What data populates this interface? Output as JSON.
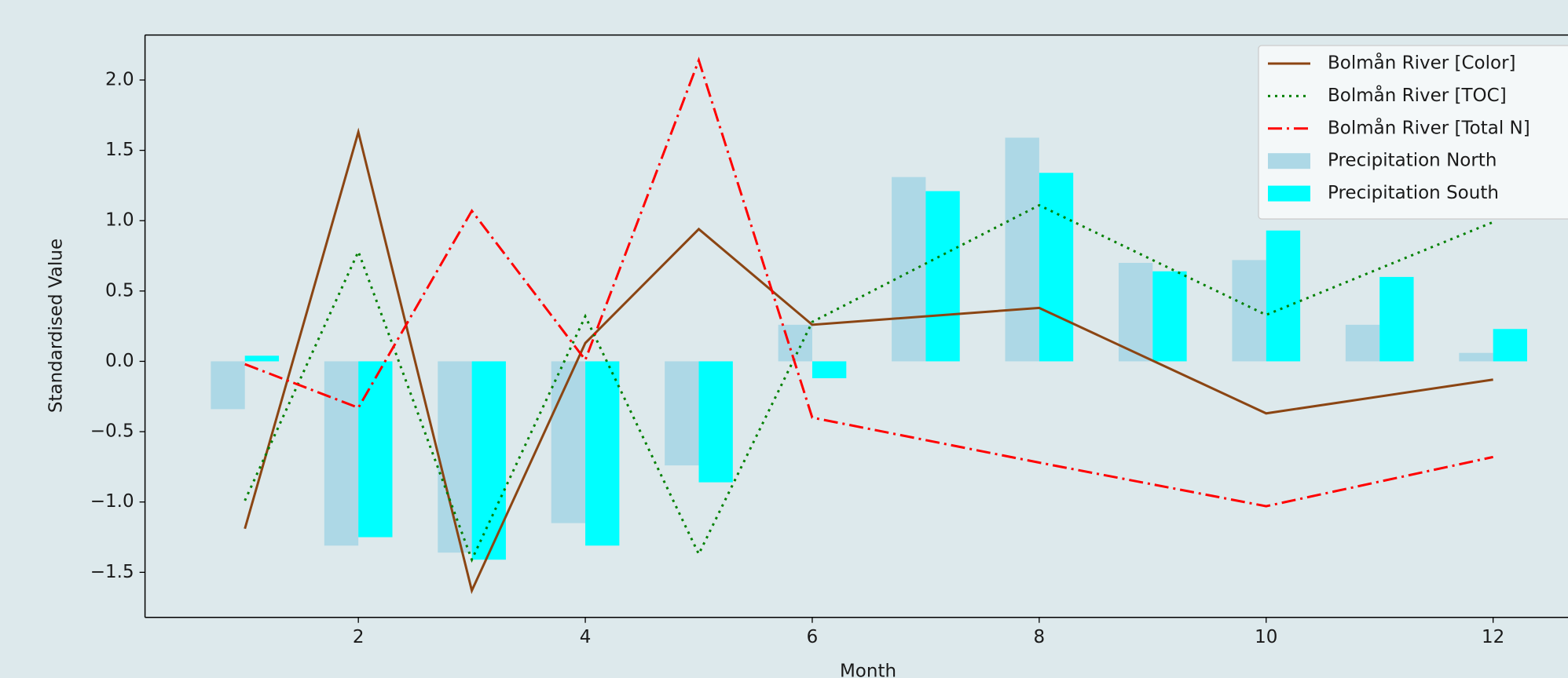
{
  "chart_data": {
    "type": "combo",
    "xlabel": "Month",
    "ylabel": "Standardised Value",
    "xlim": [
      0.12,
      12.66
    ],
    "ylim": [
      -1.82,
      2.32
    ],
    "xticks": [
      2,
      4,
      6,
      8,
      10,
      12
    ],
    "yticks": [
      {
        "value": 2.0,
        "label": "2.0"
      },
      {
        "value": 1.5,
        "label": "1.5"
      },
      {
        "value": 1.0,
        "label": "1.0"
      },
      {
        "value": 0.5,
        "label": "0.5"
      },
      {
        "value": 0.0,
        "label": "0.0"
      },
      {
        "value": -0.5,
        "label": "−0.5"
      },
      {
        "value": -1.0,
        "label": "−1.0"
      },
      {
        "value": -1.5,
        "label": "−1.5"
      }
    ],
    "legend": "upper right",
    "series": [
      {
        "name": "Bolmån River [Color]",
        "type": "line",
        "linestyle": "solid",
        "color": "#8b4513",
        "x": [
          1,
          2,
          3,
          4,
          5,
          6,
          8,
          10,
          12
        ],
        "values": [
          -1.19,
          1.63,
          -1.63,
          0.13,
          0.94,
          0.26,
          0.38,
          -0.37,
          -0.13
        ]
      },
      {
        "name": "Bolmån River [TOC]",
        "type": "line",
        "linestyle": "dotted",
        "color": "#008000",
        "x": [
          1,
          2,
          3,
          4,
          5,
          6,
          8,
          10,
          12
        ],
        "values": [
          -0.99,
          0.78,
          -1.41,
          0.32,
          -1.37,
          0.28,
          1.11,
          0.33,
          0.99
        ]
      },
      {
        "name": "Bolmån River [Total N]",
        "type": "line",
        "linestyle": "dashdot",
        "color": "#ff0000",
        "x": [
          1,
          2,
          3,
          4,
          5,
          6,
          8,
          10,
          12
        ],
        "values": [
          -0.02,
          -0.33,
          1.07,
          0.01,
          2.14,
          -0.4,
          -0.72,
          -1.03,
          -0.68
        ]
      },
      {
        "name": "Precipitation North",
        "type": "bar",
        "offset": -0.3,
        "width": 0.3,
        "color": "#add8e6",
        "x": [
          1,
          2,
          3,
          4,
          5,
          6,
          7,
          8,
          9,
          10,
          11,
          12
        ],
        "values": [
          -0.34,
          -1.31,
          -1.36,
          -1.15,
          -0.74,
          0.26,
          1.31,
          1.59,
          0.7,
          0.72,
          0.26,
          0.06
        ]
      },
      {
        "name": "Precipitation South",
        "type": "bar",
        "offset": 0,
        "width": 0.3,
        "color": "#00ffff",
        "x": [
          1,
          2,
          3,
          4,
          5,
          6,
          7,
          8,
          9,
          10,
          11,
          12
        ],
        "values": [
          0.04,
          -1.25,
          -1.41,
          -1.31,
          -0.86,
          -0.12,
          1.21,
          1.34,
          0.64,
          0.93,
          0.6,
          0.23
        ]
      }
    ]
  }
}
